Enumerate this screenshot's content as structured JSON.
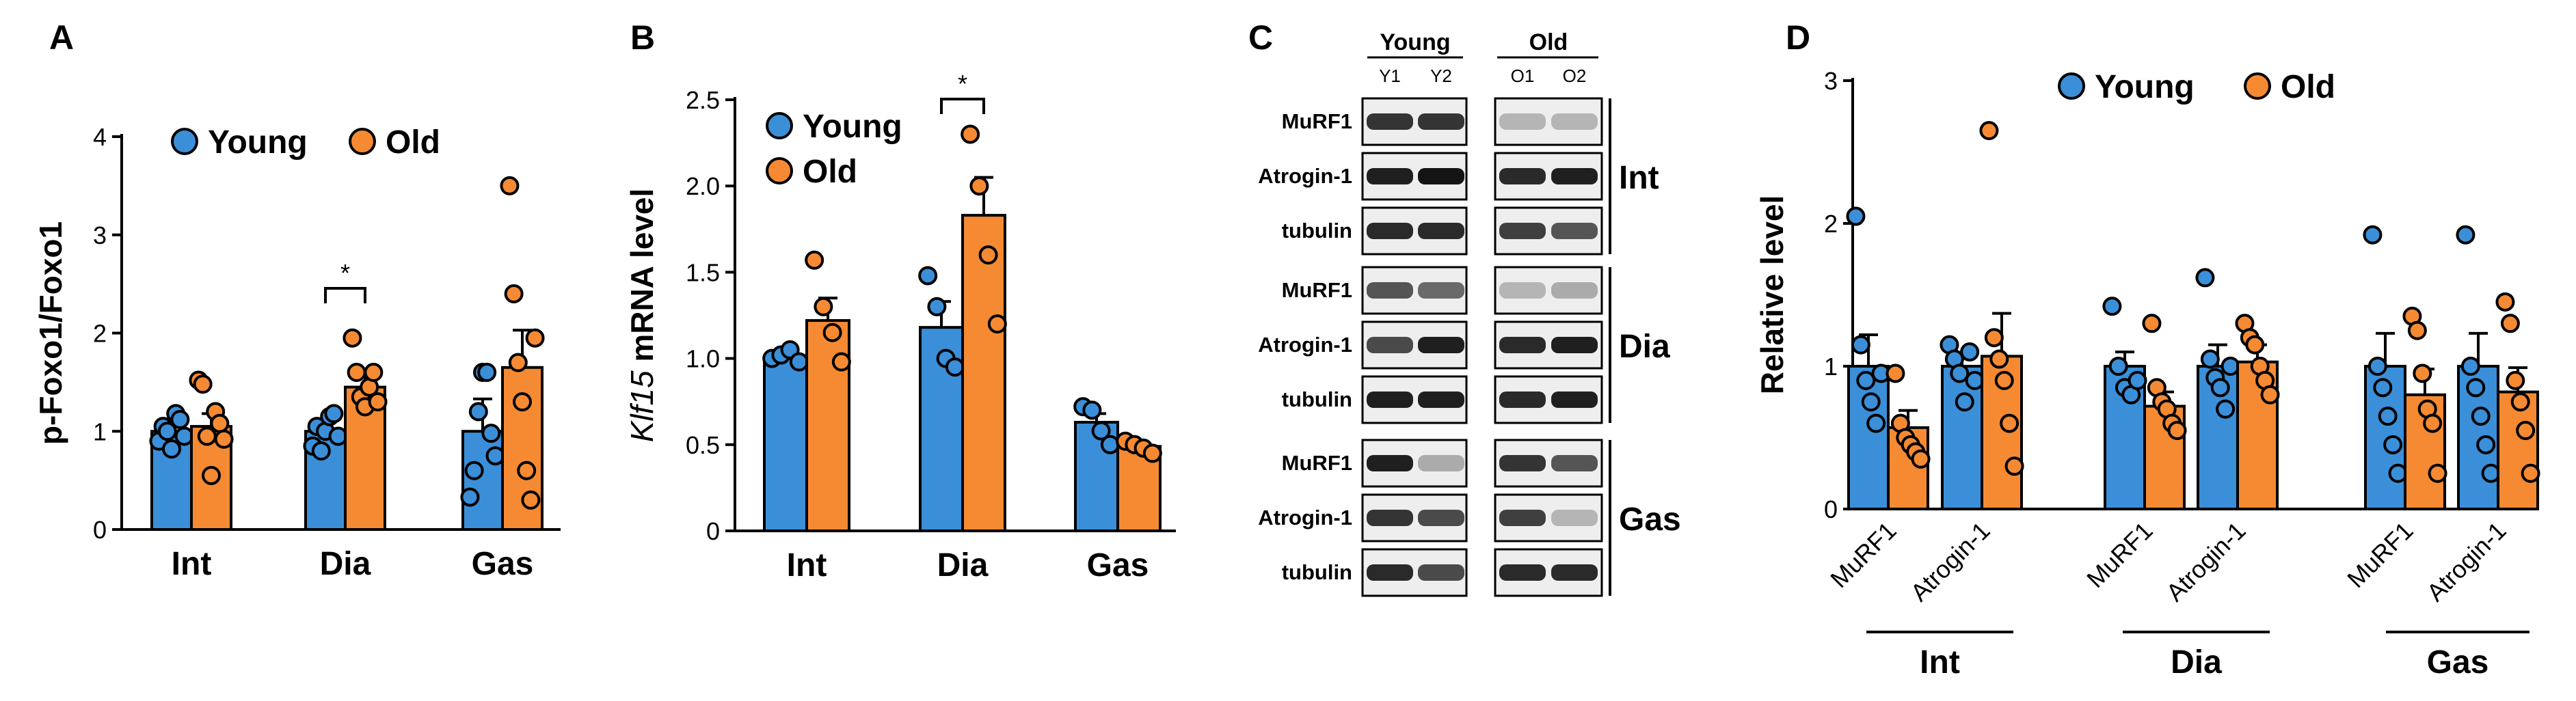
{
  "colors": {
    "young": "#3b8fd8",
    "old": "#f58a33"
  },
  "chart_data": [
    {
      "panel": "A",
      "type": "bar",
      "ylabel": "p-Foxo1/Foxo1",
      "ylim": [
        0,
        4
      ],
      "yticks": [
        "0",
        "1",
        "2",
        "3",
        "4"
      ],
      "categories": [
        "Int",
        "Dia",
        "Gas"
      ],
      "legend": {
        "placement": "top-left",
        "entries": [
          "Young",
          "Old"
        ]
      },
      "series": [
        {
          "name": "Young",
          "values": [
            1.0,
            1.0,
            1.0
          ],
          "sem": [
            0.07,
            0.09,
            0.33
          ],
          "points": [
            [
              0.9,
              1.05,
              1.0,
              0.82,
              1.18,
              1.12,
              0.95
            ],
            [
              0.85,
              1.05,
              0.8,
              1.0,
              1.15,
              1.18,
              0.95
            ],
            [
              0.33,
              0.6,
              1.2,
              1.6,
              1.6,
              0.98,
              0.75
            ]
          ]
        },
        {
          "name": "Old",
          "values": [
            1.05,
            1.45,
            1.65
          ],
          "sem": [
            0.13,
            0.12,
            0.38
          ],
          "points": [
            [
              1.52,
              1.48,
              0.95,
              0.55,
              1.2,
              1.08,
              0.92
            ],
            [
              1.95,
              1.6,
              1.35,
              1.25,
              1.45,
              1.6,
              1.3
            ],
            [
              3.5,
              2.4,
              1.7,
              1.3,
              0.6,
              0.3,
              1.95
            ]
          ]
        }
      ],
      "significance": [
        {
          "category": "Dia",
          "label": "*"
        }
      ]
    },
    {
      "panel": "B",
      "type": "bar",
      "ylabel_italic": "Klf15",
      "ylabel": " mRNA level",
      "ylim": [
        0,
        2.5
      ],
      "yticks": [
        "0",
        "0.5",
        "1.0",
        "1.5",
        "2.0",
        "2.5"
      ],
      "categories": [
        "Int",
        "Dia",
        "Gas"
      ],
      "legend": {
        "placement": "top-left",
        "entries": [
          "Young",
          "Old"
        ]
      },
      "series": [
        {
          "name": "Young",
          "values": [
            1.0,
            1.18,
            0.63
          ],
          "sem": [
            0.02,
            0.15,
            0.05
          ],
          "points": [
            [
              1.0,
              1.02,
              1.05,
              0.98
            ],
            [
              1.48,
              1.3,
              1.0,
              0.95
            ],
            [
              0.72,
              0.7,
              0.58,
              0.5
            ]
          ]
        },
        {
          "name": "Old",
          "values": [
            1.22,
            1.83,
            0.49
          ],
          "sem": [
            0.13,
            0.22,
            0.02
          ],
          "points": [
            [
              1.57,
              1.3,
              1.15,
              0.98
            ],
            [
              2.3,
              2.0,
              1.6,
              1.2
            ],
            [
              0.52,
              0.5,
              0.48,
              0.45
            ]
          ]
        }
      ],
      "significance": [
        {
          "category": "Dia",
          "label": "*"
        }
      ]
    },
    {
      "panel": "D",
      "type": "bar",
      "ylabel": "Relative  level",
      "ylim": [
        0,
        3
      ],
      "yticks": [
        "0",
        "1",
        "2",
        "3"
      ],
      "categories": [
        "MuRF1",
        "Atrogin-1",
        "MuRF1",
        "Atrogin-1",
        "MuRF1",
        "Atrogin-1"
      ],
      "groups": [
        "Int",
        "Dia",
        "Gas"
      ],
      "legend": {
        "placement": "top-right",
        "entries": [
          "Young",
          "Old"
        ]
      },
      "series": [
        {
          "name": "Young",
          "values": [
            1.0,
            1.0,
            1.0,
            1.0,
            1.0,
            1.0
          ],
          "sem": [
            0.22,
            0.08,
            0.1,
            0.15,
            0.23,
            0.23
          ],
          "points": [
            [
              2.05,
              1.15,
              0.9,
              0.75,
              0.6,
              0.95
            ],
            [
              1.15,
              1.05,
              0.95,
              0.75,
              1.1,
              0.9
            ],
            [
              1.42,
              1.0,
              0.85,
              0.8,
              0.9
            ],
            [
              1.62,
              1.05,
              0.92,
              0.85,
              0.7,
              1.0
            ],
            [
              1.92,
              1.0,
              0.85,
              0.65,
              0.45,
              0.25
            ],
            [
              1.92,
              1.0,
              0.85,
              0.65,
              0.45,
              0.25
            ]
          ]
        },
        {
          "name": "Old",
          "values": [
            0.57,
            1.07,
            0.72,
            1.03,
            0.8,
            0.82
          ],
          "sem": [
            0.12,
            0.3,
            0.1,
            0.12,
            0.18,
            0.17
          ],
          "points": [
            [
              0.95,
              0.6,
              0.5,
              0.45,
              0.4,
              0.35
            ],
            [
              2.65,
              1.2,
              1.05,
              0.9,
              0.6,
              0.3
            ],
            [
              1.3,
              0.85,
              0.75,
              0.7,
              0.6,
              0.55
            ],
            [
              1.3,
              1.2,
              1.15,
              1.0,
              0.9,
              0.8
            ],
            [
              1.35,
              1.25,
              0.95,
              0.7,
              0.6,
              0.25
            ],
            [
              1.45,
              1.3,
              0.9,
              0.75,
              0.55,
              0.25
            ]
          ]
        }
      ]
    }
  ],
  "panels": {
    "a": "A",
    "b": "B",
    "c": "C",
    "d": "D"
  },
  "blot": {
    "young_header": "Young",
    "old_header": "Old",
    "lanes": [
      "Y1",
      "Y2",
      "O1",
      "O2"
    ],
    "tissues": [
      "Int",
      "Dia",
      "Gas"
    ],
    "proteins": [
      "MuRF1",
      "Atrogin-1",
      "tubulin"
    ],
    "intensities": [
      [
        [
          0.85,
          0.85,
          0.25,
          0.25
        ],
        [
          0.95,
          1.0,
          0.9,
          0.95
        ],
        [
          0.9,
          0.9,
          0.8,
          0.7
        ]
      ],
      [
        [
          0.7,
          0.6,
          0.25,
          0.3
        ],
        [
          0.75,
          0.95,
          0.9,
          0.95
        ],
        [
          0.95,
          0.95,
          0.9,
          0.95
        ]
      ],
      [
        [
          0.95,
          0.3,
          0.85,
          0.7
        ],
        [
          0.85,
          0.75,
          0.8,
          0.25
        ],
        [
          0.9,
          0.75,
          0.9,
          0.9
        ]
      ]
    ]
  }
}
